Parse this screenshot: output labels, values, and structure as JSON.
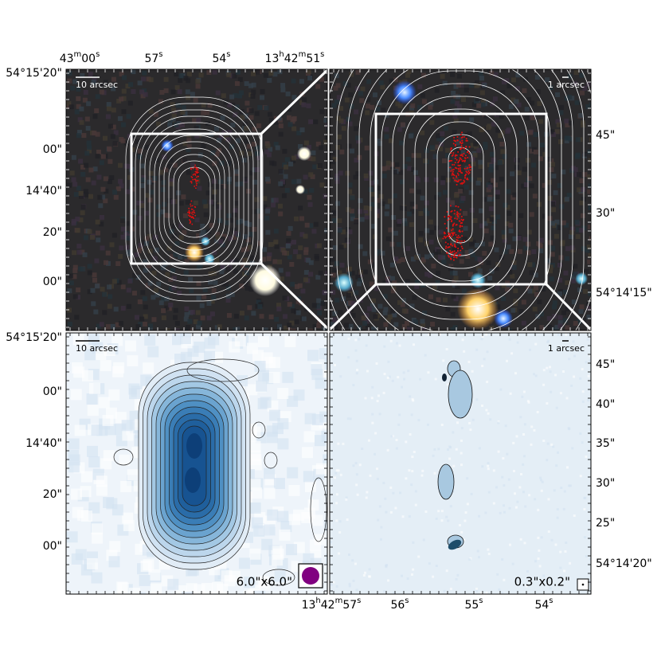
{
  "panels": [
    {
      "scale_bar": "10 arcsec",
      "top_ticks": [
        [
          "43",
          "m",
          "00",
          "s"
        ],
        [
          "57",
          "s"
        ],
        [
          "54",
          "s"
        ],
        [
          "13",
          "h",
          "42",
          "m",
          "51",
          "s"
        ]
      ],
      "left_ticks": [
        [
          "54°15'20\""
        ],
        [
          "00\""
        ],
        [
          "14'40\""
        ],
        [
          "20\""
        ],
        [
          "00\""
        ]
      ]
    },
    {
      "scale_bar": "1 arcsec",
      "right_ticks": [
        [
          "45\""
        ],
        [
          "30\""
        ],
        [
          "54°14'15\""
        ]
      ]
    },
    {
      "scale_bar": "10 arcsec",
      "left_ticks": [
        [
          "54°15'20\""
        ],
        [
          "00\""
        ],
        [
          "14'40\""
        ],
        [
          "20\""
        ],
        [
          "00\""
        ]
      ],
      "beam": "6.0\"x6.0\""
    },
    {
      "scale_bar": "1 arcsec",
      "right_ticks": [
        [
          "45\""
        ],
        [
          "40\""
        ],
        [
          "35\""
        ],
        [
          "30\""
        ],
        [
          "25\""
        ],
        [
          "54°14'20\""
        ]
      ],
      "bottom_ticks": [
        [
          "13",
          "h",
          "42",
          "m",
          "57",
          "s"
        ],
        [
          "56",
          "s"
        ],
        [
          "55",
          "s"
        ],
        [
          "54",
          "s"
        ]
      ],
      "beam": "0.3\"x0.2\""
    }
  ]
}
